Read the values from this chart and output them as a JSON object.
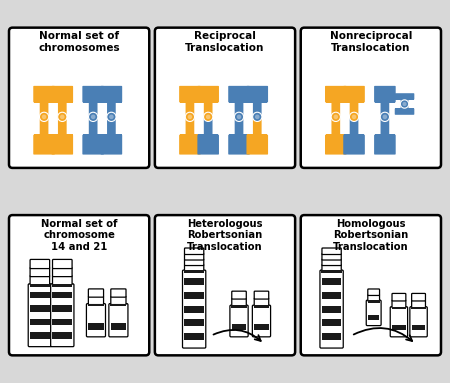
{
  "panels": [
    {
      "title": "Normal set of\nchromosomes",
      "row": 0,
      "col": 0
    },
    {
      "title": "Reciprocal\nTranslocation",
      "row": 0,
      "col": 1
    },
    {
      "title": "Nonreciprocal\nTranslocation",
      "row": 0,
      "col": 2
    },
    {
      "title": "Normal set of\nchromosome\n14 and 21",
      "row": 1,
      "col": 0
    },
    {
      "title": "Heterologous\nRobertsonian\nTranslocation",
      "row": 1,
      "col": 1
    },
    {
      "title": "Homologous\nRobertsonian\nTranslocation",
      "row": 1,
      "col": 2
    }
  ],
  "orange": "#F5A623",
  "blue": "#4A7FB5",
  "bg": "#FFFFFF"
}
